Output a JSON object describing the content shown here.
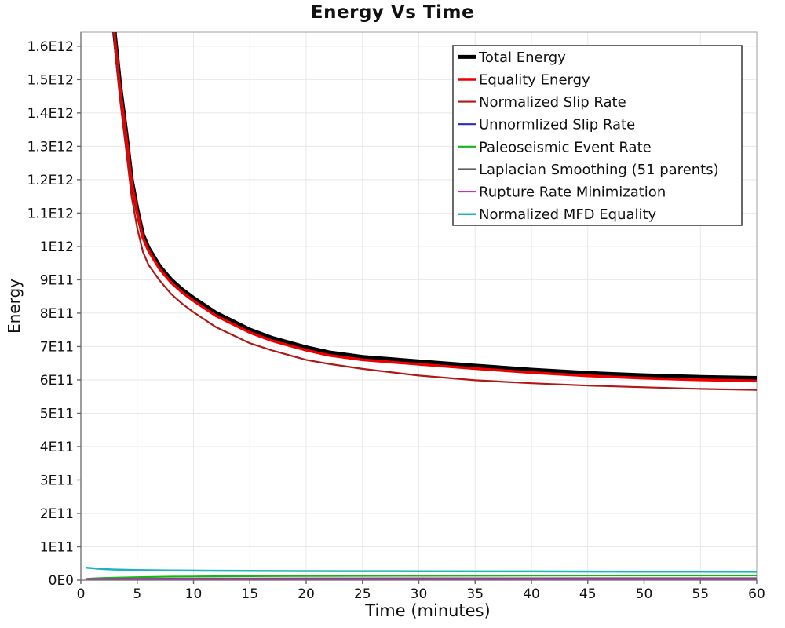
{
  "chart_data": {
    "type": "line",
    "title": "Energy Vs Time",
    "xlabel": "Time (minutes)",
    "ylabel": "Energy",
    "xlim": [
      0,
      60
    ],
    "ylim": [
      0,
      1642000000000.0
    ],
    "grid": true,
    "legend_position": "inside-top-right",
    "x_ticks": [
      0,
      5,
      10,
      15,
      20,
      25,
      30,
      35,
      40,
      45,
      50,
      55,
      60
    ],
    "y_ticks": [
      {
        "value": 0,
        "label": "0E0"
      },
      {
        "value": 100000000000.0,
        "label": "1E11"
      },
      {
        "value": 200000000000.0,
        "label": "2E11"
      },
      {
        "value": 300000000000.0,
        "label": "3E11"
      },
      {
        "value": 400000000000.0,
        "label": "4E11"
      },
      {
        "value": 500000000000.0,
        "label": "5E11"
      },
      {
        "value": 600000000000.0,
        "label": "6E11"
      },
      {
        "value": 700000000000.0,
        "label": "7E11"
      },
      {
        "value": 800000000000.0,
        "label": "8E11"
      },
      {
        "value": 900000000000.0,
        "label": "9E11"
      },
      {
        "value": 1000000000000.0,
        "label": "1E12"
      },
      {
        "value": 1100000000000.0,
        "label": "1.1E12"
      },
      {
        "value": 1200000000000.0,
        "label": "1.2E12"
      },
      {
        "value": 1300000000000.0,
        "label": "1.3E12"
      },
      {
        "value": 1400000000000.0,
        "label": "1.4E12"
      },
      {
        "value": 1500000000000.0,
        "label": "1.5E12"
      },
      {
        "value": 1600000000000.0,
        "label": "1.6E12"
      }
    ],
    "colors": {
      "grid": "#e8e8e8",
      "plot_border": "#b5b5b5",
      "axis_line": "#8a8a8a",
      "tick": "#666666",
      "legend_border": "#444444",
      "text": "#111111"
    },
    "series": [
      {
        "name": "Total Energy",
        "color": "#000000",
        "width": 5.5,
        "x": [
          2.2,
          2.5,
          3,
          3.5,
          4,
          4.5,
          5,
          5.5,
          6,
          7,
          8,
          9,
          10,
          12,
          15,
          17,
          20,
          22,
          25,
          30,
          35,
          40,
          45,
          50,
          55,
          60
        ],
        "y": [
          2400000000000.0,
          2050000000000.0,
          1635000000000.0,
          1475000000000.0,
          1345000000000.0,
          1200000000000.0,
          1110000000000.0,
          1035000000000.0,
          995000000000.0,
          940000000000.0,
          900000000000.0,
          870000000000.0,
          845000000000.0,
          800000000000.0,
          750000000000.0,
          725000000000.0,
          697000000000.0,
          682000000000.0,
          668000000000.0,
          655000000000.0,
          642000000000.0,
          630000000000.0,
          620000000000.0,
          613000000000.0,
          608000000000.0,
          605000000000.0
        ]
      },
      {
        "name": "Equality Energy",
        "color": "#ee0000",
        "width": 3.5,
        "x": [
          2.2,
          2.5,
          3,
          3.5,
          4,
          4.5,
          5,
          5.5,
          6,
          7,
          8,
          9,
          10,
          12,
          15,
          17,
          20,
          22,
          25,
          30,
          35,
          40,
          45,
          50,
          55,
          60
        ],
        "y": [
          2390000000000.0,
          2040000000000.0,
          1627000000000.0,
          1467000000000.0,
          1337000000000.0,
          1192000000000.0,
          1102000000000.0,
          1027000000000.0,
          987000000000.0,
          932000000000.0,
          892000000000.0,
          862000000000.0,
          837000000000.0,
          792000000000.0,
          742000000000.0,
          717000000000.0,
          689000000000.0,
          674000000000.0,
          660000000000.0,
          647000000000.0,
          634000000000.0,
          622000000000.0,
          612000000000.0,
          605000000000.0,
          600000000000.0,
          597000000000.0
        ]
      },
      {
        "name": "Normalized Slip Rate",
        "color": "#b01818",
        "width": 2.2,
        "x": [
          2.2,
          2.5,
          3,
          3.5,
          4,
          4.5,
          5,
          5.5,
          6,
          7,
          8,
          9,
          10,
          12,
          15,
          17,
          20,
          22,
          25,
          30,
          35,
          40,
          45,
          50,
          55,
          60
        ],
        "y": [
          2370000000000.0,
          2010000000000.0,
          1600000000000.0,
          1435000000000.0,
          1295000000000.0,
          1150000000000.0,
          1055000000000.0,
          985000000000.0,
          945000000000.0,
          898000000000.0,
          858000000000.0,
          828000000000.0,
          803000000000.0,
          758000000000.0,
          710000000000.0,
          688000000000.0,
          660000000000.0,
          648000000000.0,
          633000000000.0,
          613000000000.0,
          599000000000.0,
          590000000000.0,
          583000000000.0,
          578000000000.0,
          573000000000.0,
          570000000000.0
        ]
      },
      {
        "name": "Unnormlized Slip Rate",
        "color": "#2a2abb",
        "width": 2.2,
        "x": [
          0.5,
          5,
          15,
          30,
          45,
          60
        ],
        "y": [
          800000000.0,
          800000000.0,
          800000000.0,
          800000000.0,
          800000000.0,
          800000000.0
        ]
      },
      {
        "name": "Paleoseismic Event Rate",
        "color": "#17b517",
        "width": 2.2,
        "x": [
          0.5,
          1,
          2,
          3,
          5,
          8,
          10,
          15,
          20,
          30,
          40,
          50,
          60
        ],
        "y": [
          4000000000.0,
          5000000000.0,
          6500000000.0,
          7500000000.0,
          9000000000.0,
          10500000000.0,
          11000000000.0,
          12000000000.0,
          12700000000.0,
          13200000000.0,
          13600000000.0,
          14000000000.0,
          14000000000.0
        ]
      },
      {
        "name": "Laplacian Smoothing (51 parents)",
        "color": "#606060",
        "width": 2.2,
        "x": [
          0.5,
          5,
          10,
          20,
          30,
          45,
          60
        ],
        "y": [
          3000000000.0,
          4200000000.0,
          4800000000.0,
          5300000000.0,
          5600000000.0,
          5800000000.0,
          5800000000.0
        ]
      },
      {
        "name": "Rupture Rate Minimization",
        "color": "#c22fc2",
        "width": 2.2,
        "x": [
          0.5,
          5,
          15,
          30,
          45,
          60
        ],
        "y": [
          1800000000.0,
          1800000000.0,
          1800000000.0,
          1800000000.0,
          1800000000.0,
          1800000000.0
        ]
      },
      {
        "name": "Normalized MFD Equality",
        "color": "#1db5bd",
        "width": 2.5,
        "x": [
          0.5,
          1,
          2,
          3,
          5,
          8,
          10,
          15,
          20,
          25,
          30,
          40,
          50,
          60
        ],
        "y": [
          37000000000.0,
          35500000000.0,
          33000000000.0,
          31500000000.0,
          30000000000.0,
          29000000000.0,
          28500000000.0,
          27500000000.0,
          27000000000.0,
          26800000000.0,
          26500000000.0,
          26000000000.0,
          25500000000.0,
          25000000000.0
        ]
      }
    ]
  }
}
